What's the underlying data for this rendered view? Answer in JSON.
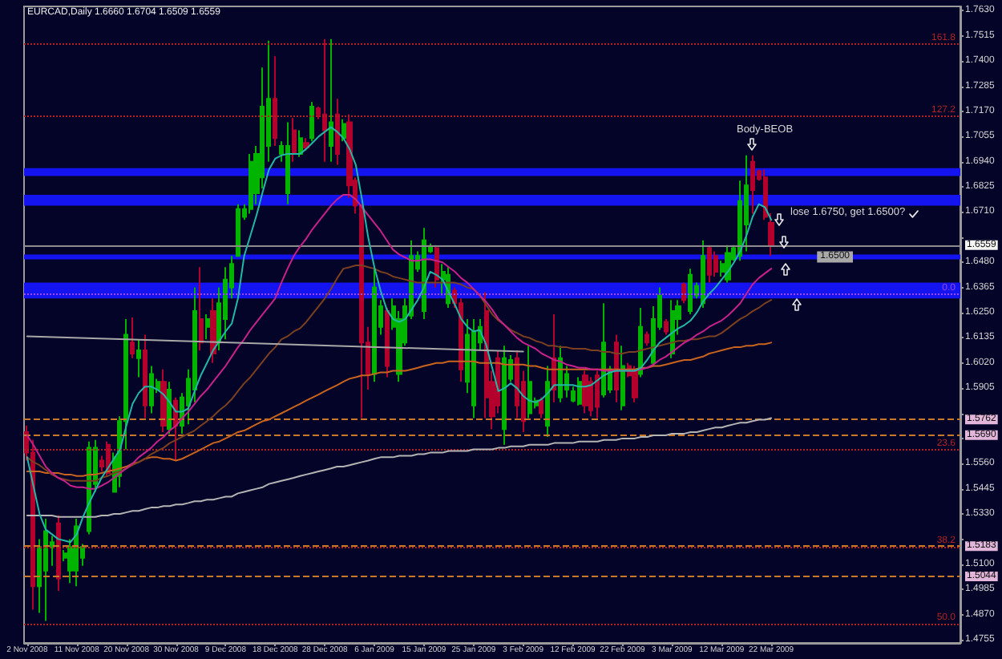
{
  "chart_data": {
    "type": "candlestick",
    "title": "EURCAD,Daily 1.6660 1.6704 1.6509 1.6559",
    "marker": "none",
    "categories": [
      "2 Nov 2008",
      null,
      null,
      null,
      null,
      null,
      null,
      null,
      "11 Nov 2008",
      null,
      null,
      null,
      null,
      null,
      null,
      null,
      "20 Nov 2008",
      null,
      null,
      null,
      null,
      null,
      null,
      null,
      "30 Nov 2008",
      null,
      null,
      null,
      null,
      null,
      null,
      null,
      "9 Dec 2008",
      null,
      null,
      null,
      null,
      null,
      null,
      null,
      "18 Dec 2008",
      null,
      null,
      null,
      null,
      null,
      null,
      null,
      "28 Dec 2008",
      null,
      null,
      null,
      null,
      null,
      null,
      null,
      "6 Jan 2009",
      null,
      null,
      null,
      null,
      null,
      null,
      null,
      "15 Jan 2009",
      null,
      null,
      null,
      null,
      null,
      null,
      null,
      "25 Jan 2009",
      null,
      null,
      null,
      null,
      null,
      null,
      null,
      "3 Feb 2009",
      null,
      null,
      null,
      null,
      null,
      null,
      null,
      "12 Feb 2009",
      null,
      null,
      null,
      null,
      null,
      null,
      null,
      "22 Feb 2009",
      null,
      null,
      null,
      null,
      null,
      null,
      null,
      "3 Mar 2009",
      null,
      null,
      null,
      null,
      null,
      null,
      null,
      "12 Mar 2009",
      null,
      null,
      null,
      null,
      null,
      null,
      null,
      "22 Mar 2009",
      null,
      null,
      null,
      null,
      null,
      null,
      null,
      null,
      null,
      null,
      null,
      null,
      null,
      null,
      null,
      null,
      null,
      null,
      null,
      null,
      null,
      null,
      null,
      null,
      null,
      null,
      null,
      null,
      null,
      null
    ],
    "ohlc": [
      [
        1.5704,
        1.5733,
        1.5574,
        1.561
      ],
      [
        1.561,
        1.5668,
        1.4892,
        1.4999
      ],
      [
        1.4999,
        1.5215,
        1.4877,
        1.5179
      ],
      [
        1.5071,
        1.5308,
        1.4841,
        1.5251
      ],
      [
        1.5179,
        1.5229,
        1.5093,
        1.5201
      ],
      [
        1.5287,
        1.5323,
        1.4978,
        1.5035
      ],
      [
        1.5129,
        1.5165,
        1.5114,
        1.515
      ],
      [
        1.5071,
        1.5215,
        1.5014,
        1.5179
      ],
      [
        1.5071,
        1.5308,
        1.4999,
        1.5273
      ],
      [
        1.5129,
        1.5193,
        1.5093,
        1.5179
      ],
      [
        1.5251,
        1.5661,
        1.5237,
        1.5632
      ],
      [
        1.5467,
        1.5668,
        1.5431,
        1.5632
      ],
      [
        1.5574,
        1.5596,
        1.5524,
        1.5546
      ],
      [
        1.5646,
        1.5661,
        1.5503,
        1.5517
      ],
      [
        1.5431,
        1.561,
        1.5431,
        1.5589
      ],
      [
        1.5503,
        1.5776,
        1.5452,
        1.5754
      ],
      [
        1.5754,
        1.6221,
        1.5625,
        1.6149
      ],
      [
        1.6113,
        1.6228,
        1.6042,
        1.6063
      ],
      [
        1.6042,
        1.6128,
        1.5955,
        1.6078
      ],
      [
        1.6078,
        1.6149,
        1.5768,
        1.5826
      ],
      [
        1.5826,
        1.6006,
        1.579,
        1.597
      ],
      [
        1.5898,
        1.5948,
        1.5883,
        1.5934
      ],
      [
        1.5934,
        1.5991,
        1.5704,
        1.5733
      ],
      [
        1.5718,
        1.5934,
        1.5697,
        1.5898
      ],
      [
        1.5848,
        1.5862,
        1.5574,
        1.5733
      ],
      [
        1.5733,
        1.5883,
        1.5697,
        1.5862
      ],
      [
        1.5826,
        1.5991,
        1.574,
        1.5948
      ],
      [
        1.5898,
        1.6365,
        1.584,
        1.6257
      ],
      [
        1.6221,
        1.6458,
        1.6078,
        1.6113
      ],
      [
        1.6185,
        1.6243,
        1.6128,
        1.6221
      ],
      [
        1.6257,
        1.6315,
        1.602,
        1.6063
      ],
      [
        1.6113,
        1.6365,
        1.6078,
        1.6293
      ],
      [
        1.6221,
        1.6458,
        1.6128,
        1.6401
      ],
      [
        1.6365,
        1.6509,
        1.6315,
        1.6473
      ],
      [
        1.6509,
        1.6746,
        1.6509,
        1.6724
      ],
      [
        1.6688,
        1.6746,
        1.6674,
        1.6724
      ],
      [
        1.6724,
        1.6976,
        1.6703,
        1.694
      ],
      [
        1.6796,
        1.7012,
        1.6746,
        1.6976
      ],
      [
        1.6868,
        1.7371,
        1.6818,
        1.7192
      ],
      [
        1.7012,
        1.7493,
        1.694,
        1.7228
      ],
      [
        1.7228,
        1.7422,
        1.7012,
        1.7048
      ],
      [
        1.6976,
        1.7033,
        1.694,
        1.7012
      ],
      [
        1.6796,
        1.712,
        1.6746,
        1.7012
      ],
      [
        1.7084,
        1.7141,
        1.694,
        1.6976
      ],
      [
        1.6976,
        1.7084,
        1.6962,
        1.7048
      ],
      [
        1.7026,
        1.7048,
        1.699,
        1.7005
      ],
      [
        1.7048,
        1.7213,
        1.7033,
        1.7192
      ],
      [
        1.7184,
        1.7192,
        1.7134,
        1.7156
      ],
      [
        1.7156,
        1.7501,
        1.694,
        1.7084
      ],
      [
        1.7012,
        1.7501,
        1.694,
        1.712
      ],
      [
        1.7156,
        1.7228,
        1.6926,
        1.6976
      ],
      [
        1.7048,
        1.7134,
        1.7033,
        1.7113
      ],
      [
        1.712,
        1.7156,
        1.6775,
        1.6832
      ],
      [
        1.6854,
        1.6868,
        1.6703,
        1.6739
      ],
      [
        1.6739,
        1.6746,
        1.5768,
        1.6113
      ],
      [
        1.6113,
        1.6185,
        1.5898,
        1.597
      ],
      [
        1.597,
        1.6458,
        1.5934,
        1.6365
      ],
      [
        1.6185,
        1.6308,
        1.6149,
        1.6279
      ],
      [
        1.6257,
        1.6272,
        1.5955,
        1.6006
      ],
      [
        1.6185,
        1.6315,
        1.6171,
        1.6279
      ],
      [
        1.597,
        1.6257,
        1.5934,
        1.6221
      ],
      [
        1.6113,
        1.6315,
        1.6099,
        1.6279
      ],
      [
        1.6236,
        1.6581,
        1.6221,
        1.6509
      ],
      [
        1.6451,
        1.653,
        1.6437,
        1.6509
      ],
      [
        1.6257,
        1.6638,
        1.6221,
        1.6581
      ],
      [
        1.653,
        1.6566,
        1.6523,
        1.6552
      ],
      [
        1.6545,
        1.6559,
        1.6365,
        1.6401
      ],
      [
        1.6401,
        1.6473,
        1.6329,
        1.6437
      ],
      [
        1.6293,
        1.6458,
        1.6272,
        1.6423
      ],
      [
        1.6351,
        1.6365,
        1.6272,
        1.6293
      ],
      [
        1.6293,
        1.6315,
        1.5934,
        1.5991
      ],
      [
        1.5934,
        1.6221,
        1.5883,
        1.6149
      ],
      [
        1.5826,
        1.6221,
        1.5768,
        1.6164
      ],
      [
        1.6113,
        1.6221,
        1.6078,
        1.6185
      ],
      [
        1.6257,
        1.6343,
        1.5768,
        1.5862
      ],
      [
        1.5934,
        1.5984,
        1.5718,
        1.5776
      ],
      [
        1.6042,
        1.6078,
        1.579,
        1.5826
      ],
      [
        1.5718,
        1.6099,
        1.5646,
        1.6042
      ],
      [
        1.5948,
        1.6056,
        1.5934,
        1.6034
      ],
      [
        1.6042,
        1.6078,
        1.5768,
        1.5826
      ],
      [
        1.5934,
        1.5984,
        1.5704,
        1.5754
      ],
      [
        1.579,
        1.6099,
        1.5768,
        1.5934
      ],
      [
        1.5826,
        1.5862,
        1.5812,
        1.5848
      ],
      [
        1.5848,
        1.5862,
        1.5768,
        1.579
      ],
      [
        1.5733,
        1.6006,
        1.5682,
        1.5934
      ],
      [
        1.6042,
        1.6243,
        1.584,
        1.5898
      ],
      [
        1.5862,
        1.6099,
        1.584,
        1.6042
      ],
      [
        1.5898,
        1.6006,
        1.5862,
        1.597
      ],
      [
        1.5848,
        1.5912,
        1.584,
        1.5891
      ],
      [
        1.5833,
        1.5955,
        1.5826,
        1.5934
      ],
      [
        1.5963,
        1.5984,
        1.579,
        1.5826
      ],
      [
        1.5934,
        1.5955,
        1.5776,
        1.5804
      ],
      [
        1.5963,
        1.5984,
        1.5768,
        1.5819
      ],
      [
        1.5876,
        1.6293,
        1.5862,
        1.6113
      ],
      [
        1.5898,
        1.6006,
        1.5883,
        1.5991
      ],
      [
        1.6113,
        1.6149,
        1.584,
        1.5898
      ],
      [
        1.5826,
        1.6099,
        1.5804,
        1.6006
      ],
      [
        1.6006,
        1.602,
        1.5955,
        1.5963
      ],
      [
        1.5991,
        1.6006,
        1.584,
        1.5862
      ],
      [
        1.597,
        1.6272,
        1.5955,
        1.6185
      ],
      [
        1.6149,
        1.6164,
        1.6099,
        1.6113
      ],
      [
        1.602,
        1.6279,
        1.6006,
        1.6221
      ],
      [
        1.6185,
        1.6365,
        1.6171,
        1.6329
      ],
      [
        1.6207,
        1.6221,
        1.6149,
        1.6164
      ],
      [
        1.6063,
        1.6308,
        1.6042,
        1.6257
      ],
      [
        1.6221,
        1.6308,
        1.6149,
        1.6279
      ],
      [
        1.6379,
        1.6387,
        1.6293,
        1.6308
      ],
      [
        1.6257,
        1.6451,
        1.6243,
        1.6423
      ],
      [
        1.6329,
        1.6387,
        1.6315,
        1.6372
      ],
      [
        1.6293,
        1.6581,
        1.6272,
        1.6509
      ],
      [
        1.6545,
        1.6559,
        1.6387,
        1.6423
      ],
      [
        1.6509,
        1.653,
        1.6415,
        1.6437
      ],
      [
        1.6437,
        1.6487,
        1.6415,
        1.6473
      ],
      [
        1.6401,
        1.6559,
        1.6387,
        1.6523
      ],
      [
        1.6494,
        1.6559,
        1.6487,
        1.6545
      ],
      [
        1.6509,
        1.6854,
        1.6487,
        1.676
      ],
      [
        1.6653,
        1.6969,
        1.653,
        1.6832
      ],
      [
        1.694,
        1.6969,
        1.6703,
        1.6811
      ],
      [
        1.6897,
        1.6904,
        1.6854,
        1.6861
      ],
      [
        1.6868,
        1.6904,
        1.6674,
        1.6688
      ],
      [
        1.666,
        1.6704,
        1.6509,
        1.6559
      ],
      null,
      null,
      null,
      null,
      null,
      null,
      null,
      null,
      null,
      null,
      null,
      null,
      null,
      null,
      null,
      null,
      null,
      null,
      null,
      null,
      null,
      null,
      null,
      null,
      null,
      null,
      null,
      null,
      null,
      null
    ],
    "colors": [
      "#b4002d",
      "#b4002d",
      "#00b400",
      "#00b400",
      "#00b400",
      "#b4002d",
      "#00b400",
      "#00b400",
      "#00b400",
      "#00b400",
      "#00b400",
      "#00b400",
      "#b4002d",
      "#b4002d",
      "#00b400",
      "#00b400",
      "#00b400",
      "#b4002d",
      "#00b400",
      "#b4002d",
      "#00b400",
      "#00b400",
      "#b4002d",
      "#00b400",
      "#b4002d",
      "#00b400",
      "#00b400",
      "#00b400",
      "#b4002d",
      "#00b400",
      "#b4002d",
      "#00b400",
      "#00b400",
      "#00b400",
      "#00b400",
      "#00b400",
      "#00b400",
      "#00b400",
      "#00b400",
      "#00b400",
      "#b4002d",
      "#00b400",
      "#00b400",
      "#b4002d",
      "#00b400",
      "#b4002d",
      "#00b400",
      "#b4002d",
      "#b4002d",
      "#00b400",
      "#b4002d",
      "#00b400",
      "#b4002d",
      "#b4002d",
      "#b4002d",
      "#b4002d",
      "#00b400",
      "#00b400",
      "#b4002d",
      "#00b400",
      "#00b400",
      "#00b400",
      "#00b400",
      "#00b400",
      "#00b400",
      "#00b400",
      "#b4002d",
      "#00b400",
      "#00b400",
      "#b4002d",
      "#b4002d",
      "#00b400",
      "#00b400",
      "#00b400",
      "#b4002d",
      "#b4002d",
      "#b4002d",
      "#00b400",
      "#00b400",
      "#b4002d",
      "#b4002d",
      "#00b400",
      "#00b400",
      "#b4002d",
      "#00b400",
      "#b4002d",
      "#00b400",
      "#00b400",
      "#00b400",
      "#00b400",
      "#b4002d",
      "#b4002d",
      "#b4002d",
      "#00b400",
      "#00b400",
      "#b4002d",
      "#00b400",
      "#b4002d",
      "#b4002d",
      "#00b400",
      "#b4002d",
      "#00b400",
      "#00b400",
      "#b4002d",
      "#00b400",
      "#00b400",
      "#b4002d",
      "#00b400",
      "#00b400",
      "#00b400",
      "#b4002d",
      "#b4002d",
      "#00b400",
      "#00b400",
      "#00b400",
      "#00b400",
      "#00b400",
      "#b4002d",
      "#b4002d",
      "#b4002d",
      "#b4002d",
      null,
      null,
      null,
      null,
      null,
      null,
      null,
      null,
      null,
      null,
      null,
      null,
      null,
      null,
      null,
      null,
      null,
      null,
      null,
      null,
      null,
      null,
      null,
      null,
      null,
      null,
      null,
      null,
      null,
      null
    ],
    "series": [
      {
        "type": "line",
        "color": "#b4b4b4",
        "values": [
          1.5323,
          1.5323,
          1.5323,
          1.5323,
          1.5323,
          1.5316,
          1.5316,
          1.5316,
          1.5316,
          1.5316,
          1.5316,
          1.5316,
          1.5323,
          1.5323,
          1.533,
          1.533,
          1.5337,
          1.5344,
          1.5344,
          1.5352,
          1.5359,
          1.5359,
          1.5366,
          1.5366,
          1.5373,
          1.5373,
          1.538,
          1.5388,
          1.5388,
          1.5395,
          1.5395,
          1.5402,
          1.5409,
          1.5409,
          1.5424,
          1.5431,
          1.5438,
          1.5445,
          1.5452,
          1.5467,
          1.5474,
          1.5481,
          1.5488,
          1.5495,
          1.5503,
          1.551,
          1.5517,
          1.5524,
          1.5531,
          1.5538,
          1.5546,
          1.5546,
          1.5553,
          1.556,
          1.5567,
          1.5574,
          1.5582,
          1.5589,
          1.5589,
          1.5589,
          1.5596,
          1.5596,
          1.5596,
          1.5603,
          1.5603,
          1.561,
          1.561,
          1.561,
          1.5618,
          1.5618,
          1.5618,
          1.5618,
          1.5625,
          1.5625,
          1.5625,
          1.5625,
          1.5632,
          1.5632,
          1.5639,
          1.5639,
          1.5639,
          1.5646,
          1.5646,
          1.5646,
          1.5646,
          1.5654,
          1.5654,
          1.5654,
          1.5654,
          1.5661,
          1.5661,
          1.5661,
          1.5661,
          1.5668,
          1.5668,
          1.5668,
          1.5675,
          1.5675,
          1.5675,
          1.5682,
          1.5682,
          1.5689,
          1.5689,
          1.5689,
          1.5697,
          1.5697,
          1.5697,
          1.5704,
          1.5704,
          1.5711,
          1.5718,
          1.5725,
          1.5725,
          1.5733,
          1.574,
          1.5747,
          1.5747,
          1.5754,
          1.5761,
          1.5761,
          1.5768,
          null,
          null,
          null,
          null,
          null,
          null,
          null,
          null,
          null,
          null,
          null,
          null,
          null,
          null,
          null,
          null,
          null,
          null,
          null,
          null,
          null,
          null,
          null,
          null,
          null,
          null,
          null,
          null,
          null,
          null
        ]
      },
      {
        "type": "line",
        "color": "#c8641e",
        "values": [
          1.5524,
          1.5524,
          1.5524,
          1.5517,
          1.5517,
          1.5517,
          1.551,
          1.551,
          1.5503,
          1.5503,
          1.551,
          1.551,
          1.5517,
          1.5524,
          1.5531,
          1.5538,
          1.5546,
          1.556,
          1.5567,
          1.5582,
          1.5589,
          1.5589,
          1.5582,
          1.5582,
          1.5574,
          1.5582,
          1.5596,
          1.561,
          1.5625,
          1.5639,
          1.5654,
          1.5661,
          1.5675,
          1.5689,
          1.5704,
          1.5711,
          1.5725,
          1.574,
          1.5754,
          1.5761,
          1.5776,
          1.579,
          1.5804,
          1.5819,
          1.5833,
          1.5848,
          1.5862,
          1.5876,
          1.5891,
          1.5905,
          1.5919,
          1.5934,
          1.5948,
          1.5955,
          1.5963,
          1.5963,
          1.597,
          1.5977,
          1.5977,
          1.5984,
          1.5984,
          1.5984,
          1.5991,
          1.5998,
          1.6006,
          1.6013,
          1.602,
          1.602,
          1.6027,
          1.6027,
          1.6027,
          1.6027,
          1.6027,
          1.602,
          1.602,
          1.602,
          1.602,
          1.6013,
          1.6013,
          1.6013,
          1.6013,
          1.6006,
          1.6006,
          1.5998,
          1.5991,
          1.5991,
          1.5991,
          1.5991,
          1.5991,
          1.5991,
          1.5991,
          1.5991,
          1.5991,
          1.5991,
          1.5991,
          1.5991,
          1.5991,
          1.5991,
          1.5991,
          1.5998,
          1.5998,
          1.6006,
          1.6006,
          1.6013,
          1.602,
          1.6027,
          1.6034,
          1.6034,
          1.6042,
          1.6049,
          1.6063,
          1.607,
          1.6078,
          1.6085,
          1.6092,
          1.6092,
          1.6099,
          1.6099,
          1.6106,
          1.6106,
          1.6113,
          null,
          null,
          null,
          null,
          null,
          null,
          null,
          null,
          null,
          null,
          null,
          null,
          null,
          null,
          null,
          null,
          null,
          null,
          null,
          null,
          null,
          null,
          null,
          null,
          null,
          null,
          null,
          null,
          null,
          null
        ]
      },
      {
        "type": "line",
        "color": "#7a4020",
        "values": [
          1.5589,
          1.5567,
          1.5553,
          1.5531,
          1.551,
          1.5495,
          1.5488,
          1.5481,
          1.5481,
          1.5481,
          1.5481,
          1.5481,
          1.5495,
          1.5503,
          1.5517,
          1.5524,
          1.5538,
          1.5553,
          1.5567,
          1.5582,
          1.5603,
          1.5618,
          1.5632,
          1.5654,
          1.5668,
          1.5682,
          1.5697,
          1.5711,
          1.5733,
          1.5754,
          1.5776,
          1.5804,
          1.5826,
          1.5855,
          1.5891,
          1.5927,
          1.5955,
          1.5991,
          1.6027,
          1.6063,
          1.6092,
          1.6128,
          1.6142,
          1.6164,
          1.6178,
          1.6207,
          1.6243,
          1.6279,
          1.6315,
          1.6358,
          1.6408,
          1.6451,
          1.6458,
          1.6466,
          1.6466,
          1.6458,
          1.6451,
          1.6437,
          1.643,
          1.6415,
          1.6408,
          1.6401,
          1.6394,
          1.6387,
          1.6387,
          1.6387,
          1.6387,
          1.6387,
          1.6387,
          1.6387,
          1.6379,
          1.6365,
          1.6358,
          1.6329,
          1.6286,
          1.6243,
          1.6214,
          1.6193,
          1.6171,
          1.6157,
          1.6142,
          1.6135,
          1.6121,
          1.6113,
          1.6099,
          1.6099,
          1.6092,
          1.6092,
          1.6085,
          1.6085,
          1.6085,
          1.6078,
          1.6078,
          1.607,
          1.607,
          1.6063,
          1.6063,
          1.607,
          1.607,
          1.6078,
          1.6085,
          1.6092,
          1.6099,
          1.6106,
          1.6113,
          1.6121,
          1.6121,
          1.6128,
          1.6128,
          1.6135,
          1.6142,
          1.6142,
          1.6157,
          1.6178,
          1.62,
          1.6221,
          1.6236,
          1.6257,
          1.6272,
          1.6293,
          1.6308,
          null,
          null,
          null,
          null,
          null,
          null,
          null,
          null,
          null,
          null,
          null,
          null,
          null,
          null,
          null,
          null,
          null,
          null,
          null,
          null,
          null,
          null,
          null,
          null,
          null,
          null,
          null,
          null,
          null,
          null
        ]
      },
      {
        "type": "line",
        "color": "#c8208c",
        "values": [
          1.5689,
          1.5646,
          1.5596,
          1.5546,
          1.5517,
          1.5495,
          1.5481,
          1.5459,
          1.5452,
          1.5452,
          1.5445,
          1.5445,
          1.5459,
          1.5474,
          1.5495,
          1.5517,
          1.5538,
          1.556,
          1.5589,
          1.561,
          1.5632,
          1.5661,
          1.5682,
          1.5711,
          1.5733,
          1.5768,
          1.5797,
          1.5833,
          1.5869,
          1.5898,
          1.5934,
          1.597,
          1.6006,
          1.6049,
          1.6092,
          1.6128,
          1.6171,
          1.6207,
          1.6243,
          1.6279,
          1.6315,
          1.6387,
          1.6451,
          1.6509,
          1.6552,
          1.6588,
          1.6631,
          1.6667,
          1.6703,
          1.6739,
          1.6768,
          1.6789,
          1.6789,
          1.6768,
          1.6732,
          1.6696,
          1.666,
          1.6624,
          1.6581,
          1.6538,
          1.6516,
          1.6502,
          1.6487,
          1.6487,
          1.6494,
          1.6494,
          1.6487,
          1.648,
          1.6458,
          1.6437,
          1.6408,
          1.6387,
          1.6358,
          1.6329,
          1.63,
          1.6264,
          1.6221,
          1.6193,
          1.6164,
          1.6135,
          1.6113,
          1.6099,
          1.6085,
          1.6063,
          1.6049,
          1.6034,
          1.6027,
          1.6013,
          1.6006,
          1.5998,
          1.5998,
          1.5991,
          1.5991,
          1.5984,
          1.5984,
          1.5984,
          1.5984,
          1.5984,
          1.5984,
          1.5991,
          1.5998,
          1.6013,
          1.6034,
          1.6049,
          1.607,
          1.6092,
          1.6113,
          1.6128,
          1.6149,
          1.6164,
          1.6185,
          1.62,
          1.6214,
          1.6236,
          1.6264,
          1.6293,
          1.6336,
          1.6379,
          1.6408,
          1.643,
          1.6451,
          null,
          null,
          null,
          null,
          null,
          null,
          null,
          null,
          null,
          null,
          null,
          null,
          null,
          null,
          null,
          null,
          null,
          null,
          null,
          null,
          null,
          null,
          null,
          null,
          null,
          null,
          null,
          null,
          null,
          null
        ]
      },
      {
        "type": "line",
        "color": "#22b8a6",
        "values": [
          1.5589,
          1.5459,
          1.533,
          1.5258,
          1.5237,
          1.5215,
          1.5208,
          1.5201,
          1.5237,
          1.5316,
          1.538,
          1.5438,
          1.5495,
          1.5538,
          1.5582,
          1.5625,
          1.5733,
          1.5833,
          1.5883,
          1.5912,
          1.5912,
          1.5898,
          1.5876,
          1.584,
          1.5797,
          1.5797,
          1.5812,
          1.5891,
          1.5963,
          1.602,
          1.6078,
          1.6121,
          1.6164,
          1.62,
          1.6315,
          1.6509,
          1.6602,
          1.6696,
          1.6803,
          1.6904,
          1.6954,
          1.6969,
          1.6976,
          1.6976,
          1.6976,
          1.6998,
          1.7026,
          1.7055,
          1.7077,
          1.7098,
          1.7077,
          1.7048,
          1.6998,
          1.6926,
          1.6768,
          1.6595,
          1.6458,
          1.6351,
          1.6264,
          1.6221,
          1.6207,
          1.6221,
          1.6264,
          1.6308,
          1.6365,
          1.6437,
          1.6423,
          1.6401,
          1.6343,
          1.6286,
          1.6221,
          1.6185,
          1.6164,
          1.6171,
          1.6106,
          1.5998,
          1.5891,
          1.5905,
          1.5927,
          1.5905,
          1.5869,
          1.5848,
          1.584,
          1.5855,
          1.5883,
          1.5919,
          1.5919,
          1.5919,
          1.5919,
          1.5912,
          1.5912,
          1.5919,
          1.5941,
          1.5963,
          1.5977,
          1.5984,
          1.5984,
          1.5984,
          1.5984,
          1.5998,
          1.6034,
          1.6078,
          1.6113,
          1.6135,
          1.6157,
          1.6178,
          1.6193,
          1.6214,
          1.625,
          1.63,
          1.6336,
          1.6365,
          1.6401,
          1.6437,
          1.648,
          1.653,
          1.6602,
          1.6688,
          1.6746,
          1.6732,
          1.6674,
          null,
          null,
          null,
          null,
          null,
          null,
          null,
          null,
          null,
          null,
          null,
          null,
          null,
          null,
          null,
          null,
          null,
          null,
          null,
          null,
          null,
          null,
          null,
          null,
          null,
          null,
          null,
          null,
          null,
          null
        ]
      },
      {
        "type": "line",
        "color": "#a8a8a8",
        "x": [
          "2 Nov 2008",
          "3 Feb 2009"
        ],
        "values": [
          1.6142,
          1.6072
        ]
      }
    ],
    "ylim": [
      1.474,
      1.765
    ],
    "yticks": [
      1.4755,
      {
        "value": 1.487,
        "label": "1.4870"
      },
      1.4985,
      {
        "value": 1.51,
        "label": "1.5100"
      },
      {
        "value": 1.5215,
        "label": null
      },
      {
        "value": 1.533,
        "label": "1.5330"
      },
      1.5445,
      {
        "value": 1.556,
        "label": "1.5560"
      },
      {
        "value": 1.5675,
        "label": null
      },
      {
        "value": 1.579,
        "label": null
      },
      1.5905,
      {
        "value": 1.602,
        "label": "1.6020"
      },
      1.6135,
      {
        "value": 1.625,
        "label": "1.6250"
      },
      1.6365,
      {
        "value": 1.648,
        "label": "1.6480"
      },
      {
        "value": 1.6595,
        "label": null
      },
      {
        "value": 1.671,
        "label": "1.6710"
      },
      1.6825,
      {
        "value": 1.694,
        "label": "1.6940"
      },
      1.7055,
      {
        "value": 1.717,
        "label": "1.7170"
      },
      1.7285,
      {
        "value": 1.74,
        "label": "1.7400"
      },
      1.7515,
      {
        "value": 1.763,
        "label": "1.7630"
      }
    ],
    "bands": [
      {
        "axis": "y",
        "from": 1.6875,
        "to": 1.6911,
        "color": "#1414f0"
      },
      {
        "axis": "y",
        "from": 1.6739,
        "to": 1.6789,
        "color": "#1414f0"
      },
      {
        "axis": "y",
        "from": 1.6494,
        "to": 1.6516,
        "color": "#1414f0",
        "label": "1.6500"
      },
      {
        "axis": "y",
        "from": 1.6315,
        "to": 1.6387,
        "color": "#1414f0"
      }
    ],
    "ref_lines": [
      {
        "axis": "y",
        "value": 1.7479,
        "color": "#b02222",
        "line_style": "dotted"
      },
      {
        "axis": "y",
        "value": 1.7148,
        "color": "#b02222",
        "line_style": "dotted"
      },
      {
        "axis": "y",
        "value": 1.6559,
        "label": "1.6559",
        "color": "#8c8c8c",
        "line_style": "solid"
      },
      {
        "axis": "y",
        "value": 1.6336,
        "color": "#9a48e8",
        "line_style": "dotted"
      },
      {
        "axis": "y",
        "value": 1.5762,
        "label": "1.5762",
        "color": "#c87828",
        "line_style": "dashed"
      },
      {
        "axis": "y",
        "value": 1.569,
        "label": "1.5690",
        "color": "#c87828",
        "line_style": "dashed"
      },
      {
        "axis": "y",
        "value": 1.5625,
        "color": "#b02222",
        "line_style": "dotted"
      },
      {
        "axis": "y",
        "value": 1.5183,
        "label": "1.5183",
        "color": "#c87828",
        "line_style": "dashed"
      },
      {
        "axis": "y",
        "value": 1.5179,
        "color": "#b02222",
        "line_style": "dotted"
      },
      {
        "axis": "y",
        "value": 1.5044,
        "label": "1.5044",
        "color": "#c87828",
        "line_style": "dashed"
      },
      {
        "axis": "y",
        "value": 1.4827,
        "color": "#b02222",
        "line_style": "dotted"
      }
    ],
    "annotations": [
      "Body-BEOB",
      "lose 1.6750, get 1.6500?",
      {
        "text": "161.8",
        "y": 1.7479
      },
      {
        "text": "127.2",
        "y": 1.7148
      },
      {
        "text": "0.0",
        "y": 1.6336
      },
      {
        "text": "23.6",
        "y": 1.5625
      },
      {
        "text": "38.2",
        "y": 1.5179
      },
      {
        "text": "50.0",
        "y": 1.4827
      }
    ]
  }
}
